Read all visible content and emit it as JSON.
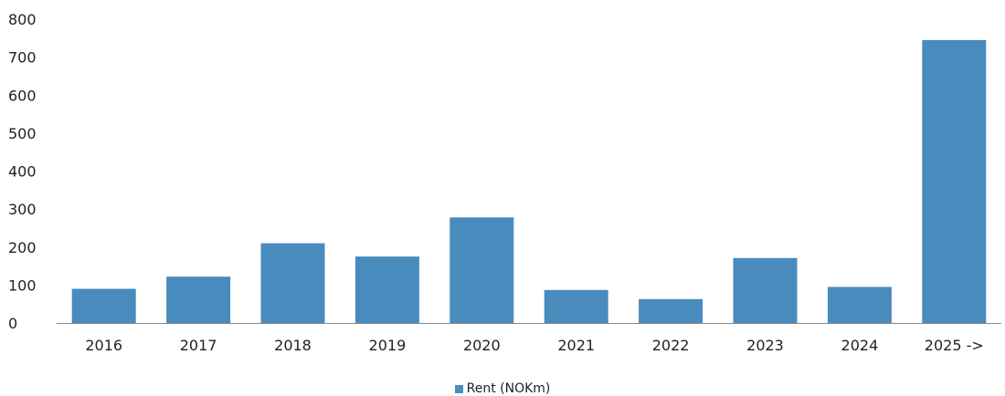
{
  "chart_data": {
    "type": "bar",
    "categories": [
      "2016",
      "2017",
      "2018",
      "2019",
      "2020",
      "2021",
      "2022",
      "2023",
      "2024",
      "2025 ->"
    ],
    "series": [
      {
        "name": "Rent (NOKm)",
        "values": [
          90,
          122,
          210,
          175,
          278,
          87,
          63,
          171,
          95,
          745
        ]
      }
    ],
    "ylim": [
      0,
      800
    ],
    "yticks": [
      0,
      100,
      200,
      300,
      400,
      500,
      600,
      700,
      800
    ],
    "grid": false,
    "legend_position": "bottom",
    "colors": {
      "bar": "#4A8BBE",
      "axis": "#888888"
    }
  }
}
